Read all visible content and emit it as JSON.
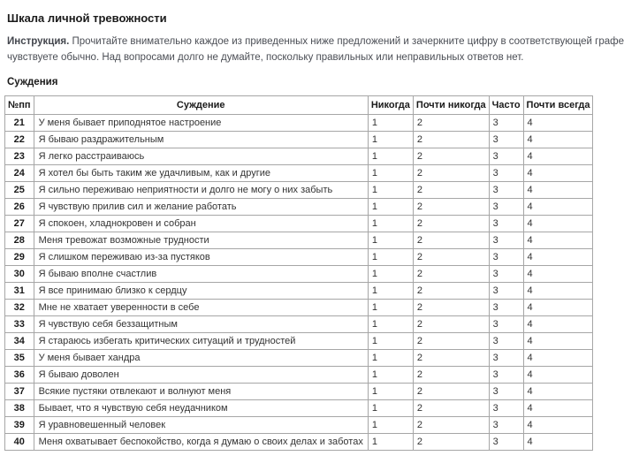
{
  "page": {
    "title": "Шкала личной тревожности",
    "instruction_label": "Инструкция.",
    "instruction_line1": "Прочитайте внимательно каждое из приведенных ниже предложений и зачеркните цифру в соответствующей графе",
    "instruction_line2": "чувствуете обычно. Над вопросами долго не думайте, поскольку правильных или неправильных ответов нет.",
    "section_heading": "Суждения"
  },
  "table": {
    "headers": [
      "№пп",
      "Суждение",
      "Никогда",
      "Почти никогда",
      "Часто",
      "Почти всегда"
    ],
    "rows": [
      {
        "num": "21",
        "statement": "У меня бывает приподнятое настроение",
        "values": [
          "1",
          "2",
          "3",
          "4"
        ]
      },
      {
        "num": "22",
        "statement": "Я бываю раздражительным",
        "values": [
          "1",
          "2",
          "3",
          "4"
        ]
      },
      {
        "num": "23",
        "statement": "Я легко расстраиваюсь",
        "values": [
          "1",
          "2",
          "3",
          "4"
        ]
      },
      {
        "num": "24",
        "statement": "Я хотел бы быть таким же удачливым, как и другие",
        "values": [
          "1",
          "2",
          "3",
          "4"
        ]
      },
      {
        "num": "25",
        "statement": "Я сильно переживаю неприятности и долго не могу о них забыть",
        "values": [
          "1",
          "2",
          "3",
          "4"
        ]
      },
      {
        "num": "26",
        "statement": "Я чувствую прилив сил и желание работать",
        "values": [
          "1",
          "2",
          "3",
          "4"
        ]
      },
      {
        "num": "27",
        "statement": "Я спокоен, хладнокровен и собран",
        "values": [
          "1",
          "2",
          "3",
          "4"
        ]
      },
      {
        "num": "28",
        "statement": "Меня тревожат возможные трудности",
        "values": [
          "1",
          "2",
          "3",
          "4"
        ]
      },
      {
        "num": "29",
        "statement": "Я слишком переживаю из-за пустяков",
        "values": [
          "1",
          "2",
          "3",
          "4"
        ]
      },
      {
        "num": "30",
        "statement": "Я бываю вполне счастлив",
        "values": [
          "1",
          "2",
          "3",
          "4"
        ]
      },
      {
        "num": "31",
        "statement": "Я все принимаю близко к сердцу",
        "values": [
          "1",
          "2",
          "3",
          "4"
        ]
      },
      {
        "num": "32",
        "statement": "Мне не хватает уверенности в себе",
        "values": [
          "1",
          "2",
          "3",
          "4"
        ]
      },
      {
        "num": "33",
        "statement": "Я чувствую себя беззащитным",
        "values": [
          "1",
          "2",
          "3",
          "4"
        ]
      },
      {
        "num": "34",
        "statement": "Я стараюсь избегать критических ситуаций и трудностей",
        "values": [
          "1",
          "2",
          "3",
          "4"
        ]
      },
      {
        "num": "35",
        "statement": "У меня бывает хандра",
        "values": [
          "1",
          "2",
          "3",
          "4"
        ]
      },
      {
        "num": "36",
        "statement": "Я бываю доволен",
        "values": [
          "1",
          "2",
          "3",
          "4"
        ]
      },
      {
        "num": "37",
        "statement": "Всякие пустяки отвлекают и волнуют меня",
        "values": [
          "1",
          "2",
          "3",
          "4"
        ]
      },
      {
        "num": "38",
        "statement": "Бывает, что я чувствую себя неудачником",
        "values": [
          "1",
          "2",
          "3",
          "4"
        ]
      },
      {
        "num": "39",
        "statement": "Я уравновешенный человек",
        "values": [
          "1",
          "2",
          "3",
          "4"
        ]
      },
      {
        "num": "40",
        "statement": "Меня охватывает беспокойство, когда я думаю о своих делах и заботах",
        "values": [
          "1",
          "2",
          "3",
          "4"
        ]
      }
    ]
  },
  "colors": {
    "background": "#ffffff",
    "table_border": "#a6a6a6",
    "heading_text": "#1a1a1a",
    "body_text": "#333333",
    "instruction_text": "#4b4e55"
  }
}
